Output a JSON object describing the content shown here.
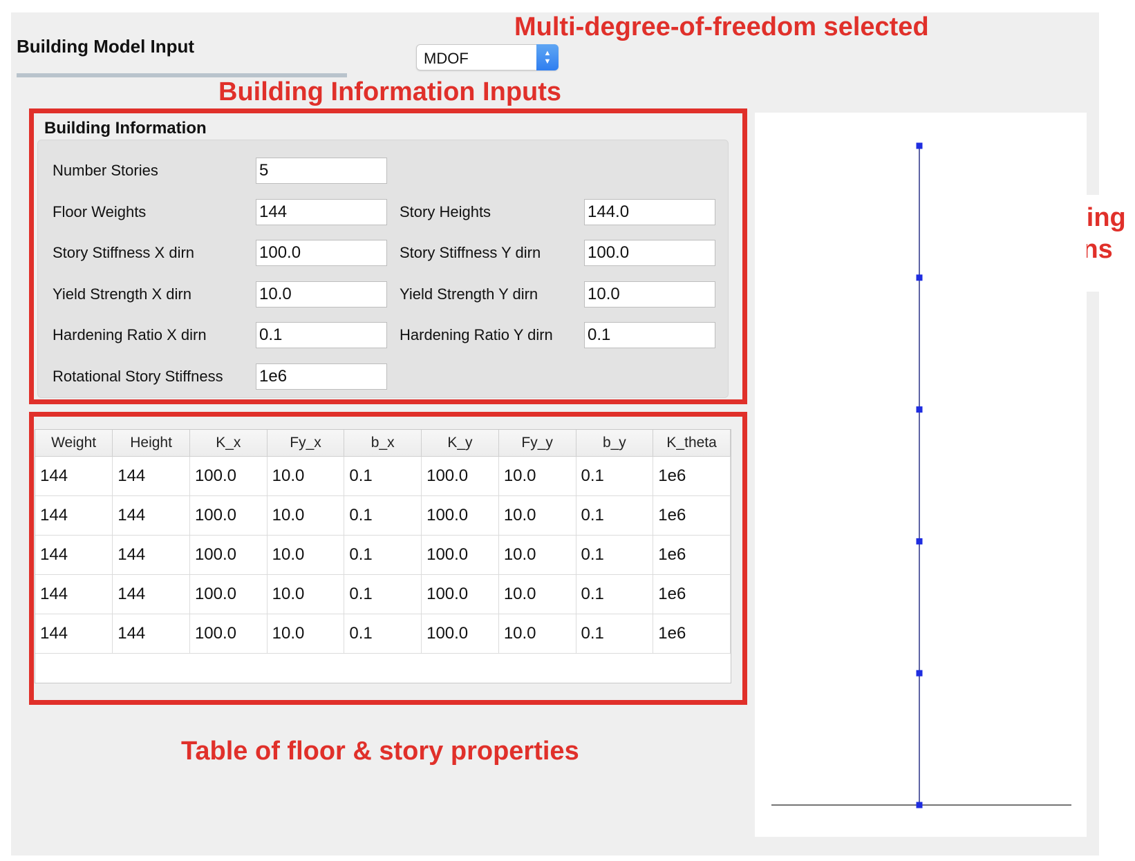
{
  "header": {
    "section_title": "Building Model Input",
    "model_select": {
      "selected": "MDOF"
    }
  },
  "annotations": {
    "model": "Multi-degree-of-freedom selected",
    "info": "Building Information Inputs",
    "figure_line1": "Figure showing",
    "figure_line2": "floor locations",
    "table": "Table of floor & story properties",
    "color": "#e0302a"
  },
  "building_info": {
    "title": "Building Information",
    "fields": {
      "number_stories": {
        "label": "Number Stories",
        "value": "5"
      },
      "floor_weights": {
        "label": "Floor Weights",
        "value": "144"
      },
      "story_heights": {
        "label": "Story Heights",
        "value": "144.0"
      },
      "stiffness_x": {
        "label": "Story Stiffness X dirn",
        "value": "100.0"
      },
      "stiffness_y": {
        "label": "Story Stiffness Y dirn",
        "value": "100.0"
      },
      "yield_x": {
        "label": "Yield Strength X dirn",
        "value": "10.0"
      },
      "yield_y": {
        "label": "Yield Strength Y dirn",
        "value": "10.0"
      },
      "hardening_x": {
        "label": "Hardening Ratio X dirn",
        "value": "0.1"
      },
      "hardening_y": {
        "label": "Hardening Ratio Y dirn",
        "value": "0.1"
      },
      "rotational": {
        "label": "Rotational Story Stiffness",
        "value": "1e6"
      }
    }
  },
  "properties_table": {
    "columns": [
      "Weight",
      "Height",
      "K_x",
      "Fy_x",
      "b_x",
      "K_y",
      "Fy_y",
      "b_y",
      "K_theta"
    ],
    "rows": [
      [
        "144",
        "144",
        "100.0",
        "10.0",
        "0.1",
        "100.0",
        "10.0",
        "0.1",
        "1e6"
      ],
      [
        "144",
        "144",
        "100.0",
        "10.0",
        "0.1",
        "100.0",
        "10.0",
        "0.1",
        "1e6"
      ],
      [
        "144",
        "144",
        "100.0",
        "10.0",
        "0.1",
        "100.0",
        "10.0",
        "0.1",
        "1e6"
      ],
      [
        "144",
        "144",
        "100.0",
        "10.0",
        "0.1",
        "100.0",
        "10.0",
        "0.1",
        "1e6"
      ],
      [
        "144",
        "144",
        "100.0",
        "10.0",
        "0.1",
        "100.0",
        "10.0",
        "0.1",
        "1e6"
      ]
    ]
  },
  "floor_figure": {
    "floor_count": 5,
    "node_color": "#1f2de0",
    "line_color": "#1a237e"
  }
}
